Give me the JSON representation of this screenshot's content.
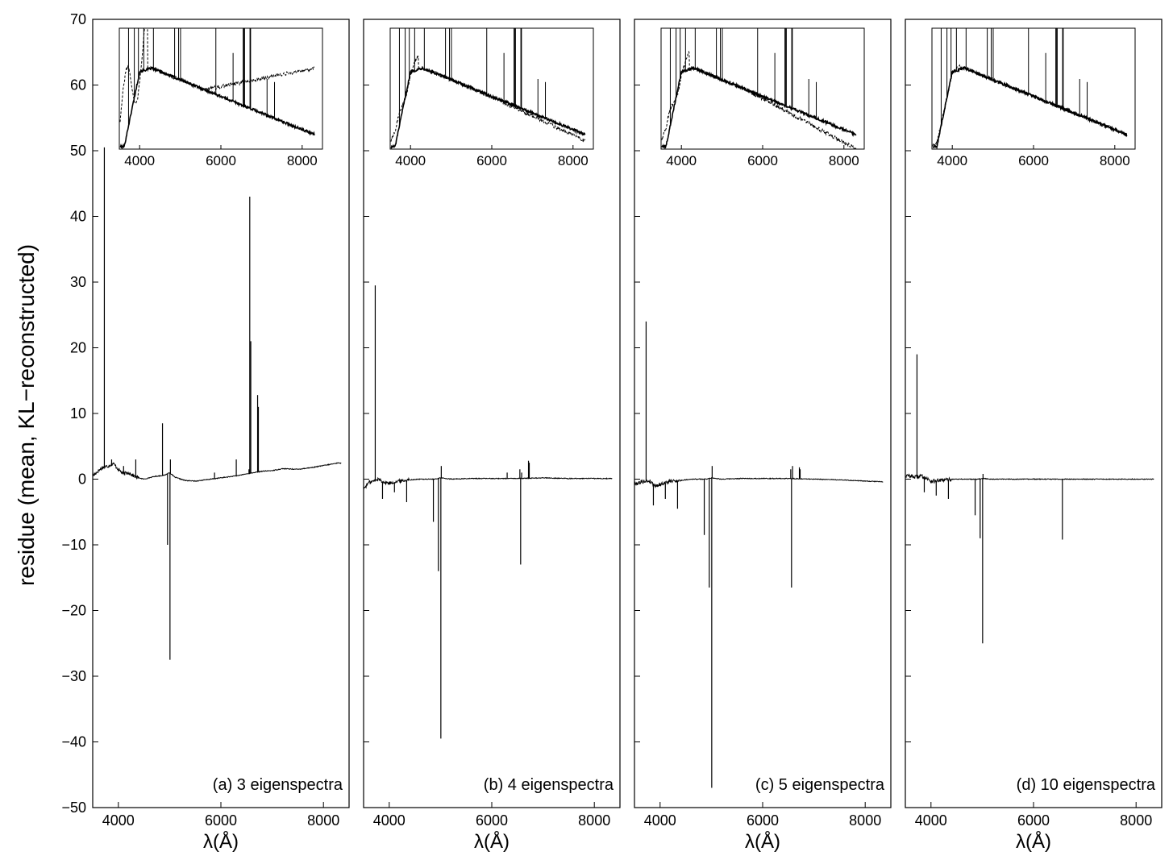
{
  "figure": {
    "ylabel": "residue (mean, KL−reconstructed)",
    "xlabel": "λ(Å)"
  },
  "chart_data": {
    "type": "line",
    "shared_ylim": [
      -50,
      70
    ],
    "yticks": [
      -50,
      -40,
      -30,
      -20,
      -10,
      0,
      10,
      20,
      30,
      40,
      50,
      60,
      70
    ],
    "ytick_labels": [
      "−50",
      "−40",
      "−30",
      "−20",
      "−10",
      "0",
      "10",
      "20",
      "30",
      "40",
      "50",
      "60",
      "70"
    ],
    "xlim": [
      3500,
      8500
    ],
    "xticks": [
      4000,
      6000,
      8000
    ],
    "xtick_labels": [
      "4000",
      "6000",
      "8000"
    ],
    "inset_xlim": [
      3500,
      8500
    ],
    "inset_xticks": [
      4000,
      6000,
      8000
    ],
    "panels": [
      {
        "label": "(a) 3 eigenspectra",
        "continuum": [
          [
            3500,
            0.5
          ],
          [
            3600,
            1.2
          ],
          [
            3700,
            1.8
          ],
          [
            3800,
            2.0
          ],
          [
            3900,
            2.4
          ],
          [
            4000,
            1.5
          ],
          [
            4100,
            0.8
          ],
          [
            4200,
            1.0
          ],
          [
            4300,
            0.5
          ],
          [
            4400,
            0.2
          ],
          [
            4500,
            0.0
          ],
          [
            4700,
            0.4
          ],
          [
            4900,
            0.6
          ],
          [
            5000,
            1.0
          ],
          [
            5100,
            0.3
          ],
          [
            5300,
            -0.2
          ],
          [
            5500,
            -0.3
          ],
          [
            5800,
            0.0
          ],
          [
            6000,
            0.2
          ],
          [
            6300,
            0.5
          ],
          [
            6500,
            0.8
          ],
          [
            6800,
            1.2
          ],
          [
            7000,
            1.3
          ],
          [
            7200,
            1.6
          ],
          [
            7500,
            1.5
          ],
          [
            7800,
            1.8
          ],
          [
            8100,
            2.2
          ],
          [
            8300,
            2.5
          ],
          [
            8350,
            2.4
          ]
        ],
        "spikes": [
          [
            3727,
            50.5
          ],
          [
            3869,
            3
          ],
          [
            4102,
            2
          ],
          [
            4340,
            3
          ],
          [
            4861,
            8.5
          ],
          [
            4959,
            -10
          ],
          [
            5007,
            -27.5
          ],
          [
            5015,
            3
          ],
          [
            5876,
            1
          ],
          [
            6300,
            3
          ],
          [
            6548,
            1.5
          ],
          [
            6563,
            43
          ],
          [
            6583,
            21
          ],
          [
            6716,
            12.8
          ],
          [
            6731,
            11
          ]
        ],
        "inset": {
          "lines": [
            "solid",
            "dashed"
          ]
        }
      },
      {
        "label": "(b) 4 eigenspectra",
        "continuum": [
          [
            3500,
            -1.5
          ],
          [
            3600,
            -0.5
          ],
          [
            3700,
            -0.3
          ],
          [
            3800,
            0.0
          ],
          [
            3900,
            -0.5
          ],
          [
            4000,
            -0.6
          ],
          [
            4200,
            -0.3
          ],
          [
            4400,
            -0.1
          ],
          [
            4600,
            0.0
          ],
          [
            4900,
            0.0
          ],
          [
            5000,
            0.2
          ],
          [
            5200,
            0.0
          ],
          [
            5600,
            0.1
          ],
          [
            6000,
            0.1
          ],
          [
            6500,
            0.1
          ],
          [
            7000,
            0.2
          ],
          [
            7500,
            0.1
          ],
          [
            8000,
            0.1
          ],
          [
            8350,
            0.1
          ]
        ],
        "spikes": [
          [
            3727,
            29.5
          ],
          [
            3869,
            -3
          ],
          [
            4102,
            -2
          ],
          [
            4340,
            -3.5
          ],
          [
            4861,
            -6.5
          ],
          [
            4959,
            -14
          ],
          [
            5007,
            -39.5
          ],
          [
            5015,
            2
          ],
          [
            6300,
            1
          ],
          [
            6548,
            1.5
          ],
          [
            6563,
            -13
          ],
          [
            6583,
            1
          ],
          [
            6716,
            2.8
          ],
          [
            6731,
            2.5
          ]
        ],
        "inset": {
          "lines": [
            "solid",
            "dashed"
          ]
        }
      },
      {
        "label": "(c) 5 eigenspectra",
        "continuum": [
          [
            3500,
            -0.8
          ],
          [
            3600,
            -0.5
          ],
          [
            3700,
            -0.3
          ],
          [
            3800,
            -0.3
          ],
          [
            3900,
            -1.0
          ],
          [
            4000,
            -0.8
          ],
          [
            4200,
            -0.3
          ],
          [
            4400,
            -0.2
          ],
          [
            4600,
            0.0
          ],
          [
            4900,
            0.0
          ],
          [
            5000,
            0.2
          ],
          [
            5200,
            0.0
          ],
          [
            5600,
            0.1
          ],
          [
            6000,
            0.1
          ],
          [
            6500,
            0.1
          ],
          [
            7000,
            0.0
          ],
          [
            7500,
            -0.1
          ],
          [
            8000,
            -0.3
          ],
          [
            8350,
            -0.4
          ]
        ],
        "spikes": [
          [
            3727,
            24
          ],
          [
            3869,
            -4
          ],
          [
            4102,
            -3
          ],
          [
            4340,
            -4.5
          ],
          [
            4861,
            -8.5
          ],
          [
            4959,
            -16.5
          ],
          [
            5007,
            -47
          ],
          [
            5015,
            2
          ],
          [
            6548,
            1.5
          ],
          [
            6563,
            -16.5
          ],
          [
            6583,
            2
          ],
          [
            6716,
            1.8
          ],
          [
            6731,
            1.5
          ]
        ],
        "inset": {
          "lines": [
            "solid",
            "dashed"
          ]
        }
      },
      {
        "label": "(d) 10 eigenspectra",
        "continuum": [
          [
            3500,
            0.5
          ],
          [
            3600,
            0.5
          ],
          [
            3700,
            0.3
          ],
          [
            3800,
            0.5
          ],
          [
            3900,
            0.2
          ],
          [
            4000,
            -0.3
          ],
          [
            4200,
            -0.2
          ],
          [
            4400,
            0.0
          ],
          [
            4600,
            0.0
          ],
          [
            4900,
            0.0
          ],
          [
            5000,
            0.1
          ],
          [
            5200,
            0.0
          ],
          [
            5600,
            0.0
          ],
          [
            6000,
            0.0
          ],
          [
            6500,
            0.0
          ],
          [
            7000,
            0.0
          ],
          [
            7500,
            0.0
          ],
          [
            8000,
            0.0
          ],
          [
            8350,
            0.0
          ]
        ],
        "spikes": [
          [
            3727,
            19
          ],
          [
            3869,
            -2
          ],
          [
            4102,
            -2.5
          ],
          [
            4340,
            -3
          ],
          [
            4861,
            -5.5
          ],
          [
            4959,
            -9
          ],
          [
            5007,
            -25
          ],
          [
            5015,
            0.8
          ],
          [
            6563,
            -9.2
          ]
        ],
        "inset": {
          "lines": [
            "solid",
            "dashed"
          ]
        }
      }
    ]
  }
}
